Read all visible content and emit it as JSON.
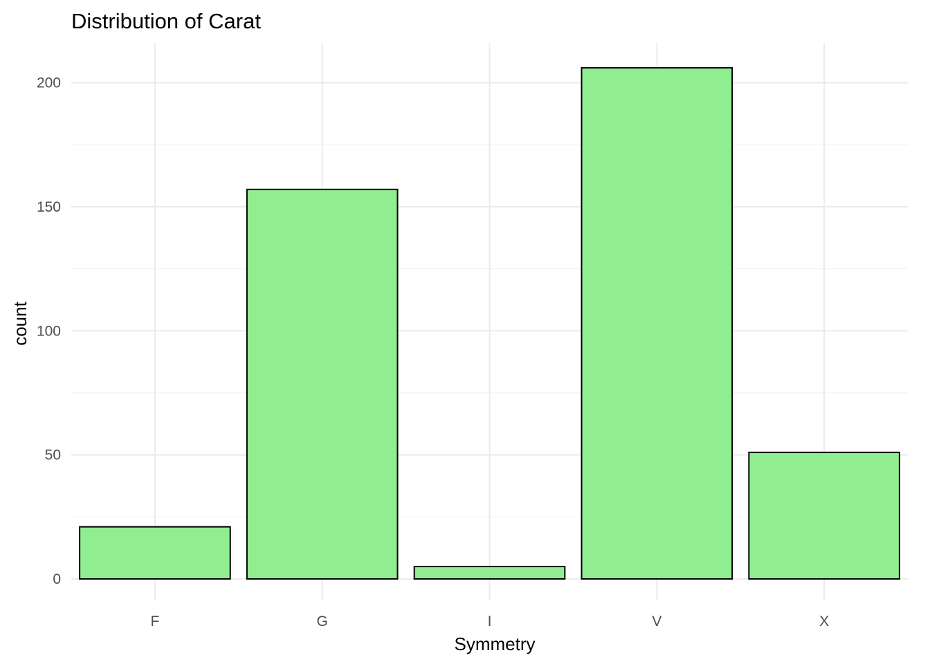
{
  "chart_data": {
    "type": "bar",
    "title": "Distribution of Carat",
    "xlabel": "Symmetry",
    "ylabel": "count",
    "categories": [
      "F",
      "G",
      "I",
      "V",
      "X"
    ],
    "values": [
      21,
      157,
      5,
      206,
      51
    ],
    "ylim": [
      0,
      216
    ],
    "yticks": [
      0,
      50,
      100,
      150,
      200
    ],
    "grid": true,
    "legend": "none",
    "bar_color": "#90EE90",
    "bar_outline": "#000000"
  }
}
